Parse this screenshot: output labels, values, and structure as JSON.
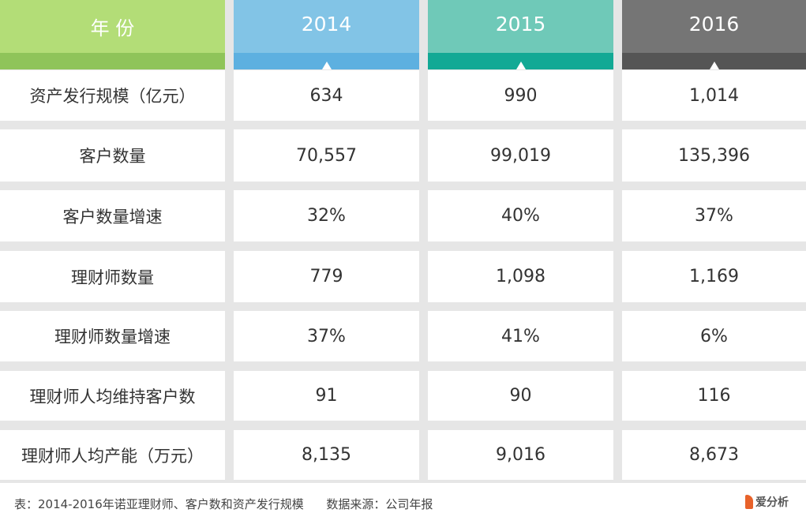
{
  "table": {
    "header_label": "年 份",
    "years": [
      "2014",
      "2015",
      "2016"
    ],
    "rows": [
      {
        "label": "资产发行规模（亿元）",
        "values": [
          "634",
          "990",
          "1,014"
        ]
      },
      {
        "label": "客户数量",
        "values": [
          "70,557",
          "99,019",
          "135,396"
        ]
      },
      {
        "label": "客户数量增速",
        "values": [
          "32%",
          "40%",
          "37%"
        ]
      },
      {
        "label": "理财师数量",
        "values": [
          "779",
          "1,098",
          "1,169"
        ]
      },
      {
        "label": "理财师数量增速",
        "values": [
          "37%",
          "41%",
          "6%"
        ]
      },
      {
        "label": "理财师人均维持客户数",
        "values": [
          "91",
          "90",
          "116"
        ]
      },
      {
        "label": "理财师人均产能（万元）",
        "values": [
          "8,135",
          "9,016",
          "8,673"
        ]
      }
    ]
  },
  "chart_data": {
    "type": "table",
    "columns": [
      "年 份",
      "2014",
      "2015",
      "2016"
    ],
    "rows": [
      [
        "资产发行规模（亿元）",
        "634",
        "990",
        "1,014"
      ],
      [
        "客户数量",
        "70,557",
        "99,019",
        "135,396"
      ],
      [
        "客户数量增速",
        "32%",
        "40%",
        "37%"
      ],
      [
        "理财师数量",
        "779",
        "1,098",
        "1,169"
      ],
      [
        "理财师数量增速",
        "37%",
        "41%",
        "6%"
      ],
      [
        "理财师人均维持客户数",
        "91",
        "90",
        "116"
      ],
      [
        "理财师人均产能（万元）",
        "8,135",
        "9,016",
        "8,673"
      ]
    ]
  },
  "colors": {
    "year_label_top": "#b3dd77",
    "year_label_strip": "#8fc45a",
    "y2014_top": "#82c4e6",
    "y2014_strip": "#5db0e0",
    "y2015_top": "#6fc9b8",
    "y2015_strip": "#12a995",
    "y2016_top": "#757575",
    "y2016_strip": "#555555"
  },
  "footer": {
    "caption": "表：2014-2016年诺亚理财师、客户数和资产发行规模      数据来源：公司年报",
    "logo_text": "爱分析"
  }
}
